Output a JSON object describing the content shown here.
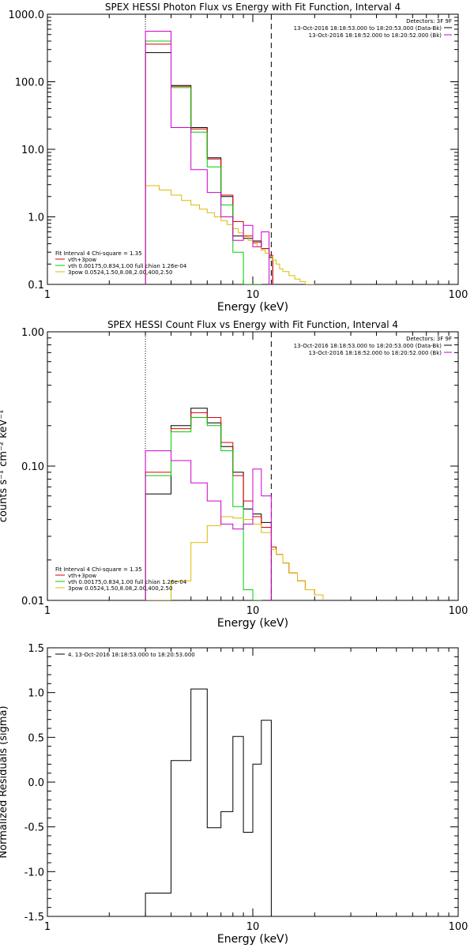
{
  "chart_data": [
    {
      "type": "line",
      "title": "SPEX HESSI Photon Flux vs Energy with Fit Function, Interval 4",
      "xlabel": "Energy (keV)",
      "ylabel": "",
      "xscale": "log",
      "yscale": "log",
      "xlim": [
        1,
        100
      ],
      "ylim": [
        0.1,
        1000
      ],
      "x_ticks": [
        {
          "v": 1,
          "label": "1"
        },
        {
          "v": 10,
          "label": "10"
        },
        {
          "v": 100,
          "label": "100"
        }
      ],
      "y_ticks": [
        {
          "v": 0.1,
          "label": "0.1"
        },
        {
          "v": 1,
          "label": "1.0"
        },
        {
          "v": 10,
          "label": "10.0"
        },
        {
          "v": 100,
          "label": "100.0"
        },
        {
          "v": 1000,
          "label": "1000.0"
        }
      ],
      "vlines": [
        {
          "x": 3.0,
          "style": "dotted",
          "color": "#000000"
        },
        {
          "x": 12.3,
          "style": "dashed",
          "color": "#000000"
        }
      ],
      "legend_top": {
        "title": "Detectors: 3F 9F",
        "entries": [
          {
            "label": "13-Oct-2016 18:18:53.000 to 18:20:53.000 (Data-Bk)",
            "color": "#000000"
          },
          {
            "label": "13-Oct-2016 18:18:52.000 to 18:20:52.000 (Bk)",
            "color": "#cc00cc"
          }
        ]
      },
      "legend_bottom": {
        "title": "Fit Interval 4   Chi-square = 1.35",
        "entries": [
          {
            "label": "vth+3pow",
            "color": "#dd0000"
          },
          {
            "label": "vth 0.00175,0.834,1.00   full chian 1.26e-04",
            "color": "#00cc00"
          },
          {
            "label": "3pow 0.0524,1.50,8.08,2.00,400,2.50",
            "color": "#ddbb00"
          }
        ]
      },
      "series": [
        {
          "name": "Data-Bk",
          "color": "#000000",
          "edges": [
            3.0,
            3.5,
            4.0,
            4.5,
            5.0,
            5.5,
            6.0,
            6.5,
            7.0,
            7.5,
            8.0,
            8.5,
            9.0,
            9.5,
            10.0,
            10.5,
            11.0,
            11.5,
            12.0,
            12.5
          ],
          "values": [
            270,
            270,
            88,
            88,
            21,
            21,
            7.5,
            7.5,
            2.0,
            2.0,
            0.52,
            0.52,
            0.48,
            0.48,
            0.44,
            0.44,
            0.34,
            0.34,
            0.25
          ]
        },
        {
          "name": "vth+3pow",
          "color": "#dd0000",
          "edges": [
            3.0,
            3.5,
            4.0,
            4.5,
            5.0,
            5.5,
            6.0,
            6.5,
            7.0,
            7.5,
            8.0,
            8.5,
            9.0,
            9.5,
            10.0,
            10.5,
            11.0,
            11.5,
            12.0,
            12.5
          ],
          "values": [
            360,
            360,
            86,
            86,
            20,
            20,
            7.2,
            7.2,
            2.1,
            2.1,
            0.85,
            0.85,
            0.52,
            0.52,
            0.42,
            0.42,
            0.34,
            0.34,
            0.27
          ]
        },
        {
          "name": "vth",
          "color": "#00cc00",
          "edges": [
            3.0,
            3.5,
            4.0,
            4.5,
            5.0,
            5.5,
            6.0,
            6.5,
            7.0,
            7.5,
            8.0,
            8.5,
            9.0,
            9.5,
            10.0,
            10.5,
            11.0
          ],
          "values": [
            400,
            400,
            82,
            82,
            18,
            18,
            5.5,
            5.5,
            1.5,
            1.5,
            0.3,
            0.3,
            0.08,
            0.08,
            0.08,
            0.08
          ]
        },
        {
          "name": "3pow",
          "color": "#ddbb00",
          "edges": [
            3.0,
            3.5,
            4.0,
            4.5,
            5.0,
            5.5,
            6.0,
            6.5,
            7.0,
            7.5,
            8.0,
            8.5,
            9.0,
            9.5,
            10.0,
            10.5,
            11.0,
            11.5,
            12.0,
            12.5,
            13.0,
            13.5,
            14.0,
            15.0,
            16.0,
            17.0,
            18.0,
            19.0,
            20.0
          ],
          "values": [
            2.9,
            2.5,
            2.1,
            1.75,
            1.5,
            1.3,
            1.15,
            1.0,
            0.88,
            0.77,
            0.67,
            0.58,
            0.51,
            0.45,
            0.4,
            0.36,
            0.32,
            0.29,
            0.26,
            0.23,
            0.2,
            0.17,
            0.155,
            0.135,
            0.12,
            0.11,
            0.1,
            0.09
          ]
        },
        {
          "name": "Bk",
          "color": "#cc00cc",
          "edges": [
            3.0,
            3.5,
            4.0,
            4.5,
            5.0,
            5.5,
            6.0,
            6.5,
            7.0,
            7.5,
            8.0,
            8.5,
            9.0,
            9.5,
            10.0,
            10.5,
            11.0,
            11.5,
            12.0,
            12.5
          ],
          "values": [
            560,
            560,
            21,
            21,
            5.0,
            5.0,
            2.3,
            2.3,
            1.0,
            1.0,
            0.45,
            0.45,
            0.75,
            0.75,
            0.36,
            0.36,
            0.6,
            0.6,
            0.02
          ]
        }
      ]
    },
    {
      "type": "line",
      "title": "SPEX HESSI Count Flux vs Energy with Fit Function, Interval 4",
      "xlabel": "Energy (keV)",
      "ylabel": "counts s⁻¹ cm⁻² keV⁻¹",
      "xscale": "log",
      "yscale": "log",
      "xlim": [
        1,
        100
      ],
      "ylim": [
        0.01,
        1
      ],
      "x_ticks": [
        {
          "v": 1,
          "label": "1"
        },
        {
          "v": 10,
          "label": "10"
        },
        {
          "v": 100,
          "label": "100"
        }
      ],
      "y_ticks": [
        {
          "v": 0.01,
          "label": "0.01"
        },
        {
          "v": 0.1,
          "label": "0.10"
        },
        {
          "v": 1,
          "label": "1.00"
        }
      ],
      "vlines": [
        {
          "x": 3.0,
          "style": "dotted",
          "color": "#000000"
        },
        {
          "x": 12.3,
          "style": "dashed",
          "color": "#000000"
        }
      ],
      "legend_top": {
        "title": "Detectors: 3F 9F",
        "entries": [
          {
            "label": "13-Oct-2016 18:18:53.000 to 18:20:53.000 (Data-Bk)",
            "color": "#000000"
          },
          {
            "label": "13-Oct-2016 18:18:52.000 to 18:20:52.000 (Bk)",
            "color": "#cc00cc"
          }
        ]
      },
      "legend_bottom": {
        "title": "Fit Interval 4   Chi-square = 1.35",
        "entries": [
          {
            "label": "vth+3pow",
            "color": "#dd0000"
          },
          {
            "label": "vth 0.00175,0.834,1.00   full chian 1.26e-04",
            "color": "#00cc00"
          },
          {
            "label": "3pow 0.0524,1.50,8.08,2.00,400,2.50",
            "color": "#ddbb00"
          }
        ]
      },
      "series": [
        {
          "name": "Data-Bk",
          "color": "#000000",
          "edges": [
            3.0,
            4.0,
            5.0,
            6.0,
            7.0,
            8.0,
            9.0,
            10.0,
            11.0,
            12.3
          ],
          "values": [
            0.062,
            0.2,
            0.27,
            0.21,
            0.14,
            0.09,
            0.048,
            0.044,
            0.038
          ]
        },
        {
          "name": "vth+3pow",
          "color": "#dd0000",
          "edges": [
            3.0,
            4.0,
            5.0,
            6.0,
            7.0,
            8.0,
            9.0,
            10.0,
            11.0,
            12.3,
            13.0,
            14.0,
            15.0,
            16.5,
            18.0,
            20.0,
            22.0
          ],
          "values": [
            0.09,
            0.19,
            0.25,
            0.23,
            0.15,
            0.085,
            0.055,
            0.042,
            0.035,
            0.025,
            0.022,
            0.019,
            0.016,
            0.014,
            0.012,
            0.011
          ]
        },
        {
          "name": "vth",
          "color": "#00cc00",
          "edges": [
            3.0,
            4.0,
            5.0,
            6.0,
            7.0,
            8.0,
            9.0,
            10.0,
            11.0
          ],
          "values": [
            0.085,
            0.18,
            0.23,
            0.2,
            0.13,
            0.05,
            0.012,
            0.008
          ]
        },
        {
          "name": "3pow",
          "color": "#ddbb00",
          "edges": [
            3.0,
            4.0,
            5.0,
            6.0,
            7.0,
            8.0,
            9.0,
            10.0,
            11.0,
            12.3,
            13.0,
            14.0,
            15.0,
            16.5,
            18.0,
            20.0,
            22.0
          ],
          "values": [
            0.009,
            0.014,
            0.027,
            0.036,
            0.042,
            0.041,
            0.04,
            0.037,
            0.032,
            0.024,
            0.022,
            0.019,
            0.016,
            0.014,
            0.012,
            0.011
          ]
        },
        {
          "name": "Bk",
          "color": "#cc00cc",
          "edges": [
            3.0,
            4.0,
            5.0,
            6.0,
            7.0,
            8.0,
            9.0,
            10.0,
            11.0,
            12.3
          ],
          "values": [
            0.13,
            0.11,
            0.075,
            0.055,
            0.037,
            0.034,
            0.037,
            0.095,
            0.06
          ]
        }
      ]
    },
    {
      "type": "line",
      "title": "",
      "xlabel": "Energy (keV)",
      "ylabel": "Normalized Residuals (sigma)",
      "xscale": "log",
      "yscale": "linear",
      "xlim": [
        1,
        100
      ],
      "ylim": [
        -1.5,
        1.5
      ],
      "x_ticks": [
        {
          "v": 1,
          "label": "1"
        },
        {
          "v": 10,
          "label": "10"
        },
        {
          "v": 100,
          "label": "100"
        }
      ],
      "y_ticks": [
        {
          "v": -1.5,
          "label": "-1.5"
        },
        {
          "v": -1.0,
          "label": "-1.0"
        },
        {
          "v": -0.5,
          "label": "-0.5"
        },
        {
          "v": 0,
          "label": "0.0"
        },
        {
          "v": 0.5,
          "label": "0.5"
        },
        {
          "v": 1.0,
          "label": "1.0"
        },
        {
          "v": 1.5,
          "label": "1.5"
        }
      ],
      "legend_top": {
        "title": "",
        "entries": [
          {
            "label": "4. 13-Oct-2016 18:18:53.000 to 18:20:53.000",
            "color": "#000000"
          }
        ]
      },
      "series": [
        {
          "name": "4. 13-Oct-2016 18:18:53.000 to 18:20:53.000",
          "color": "#000000",
          "edges": [
            3.0,
            4.0,
            5.0,
            6.0,
            7.0,
            8.0,
            9.0,
            10.0,
            11.0,
            12.3
          ],
          "values": [
            -1.24,
            0.24,
            1.04,
            -0.51,
            -0.33,
            0.51,
            -0.56,
            0.2,
            0.69
          ]
        }
      ]
    }
  ]
}
